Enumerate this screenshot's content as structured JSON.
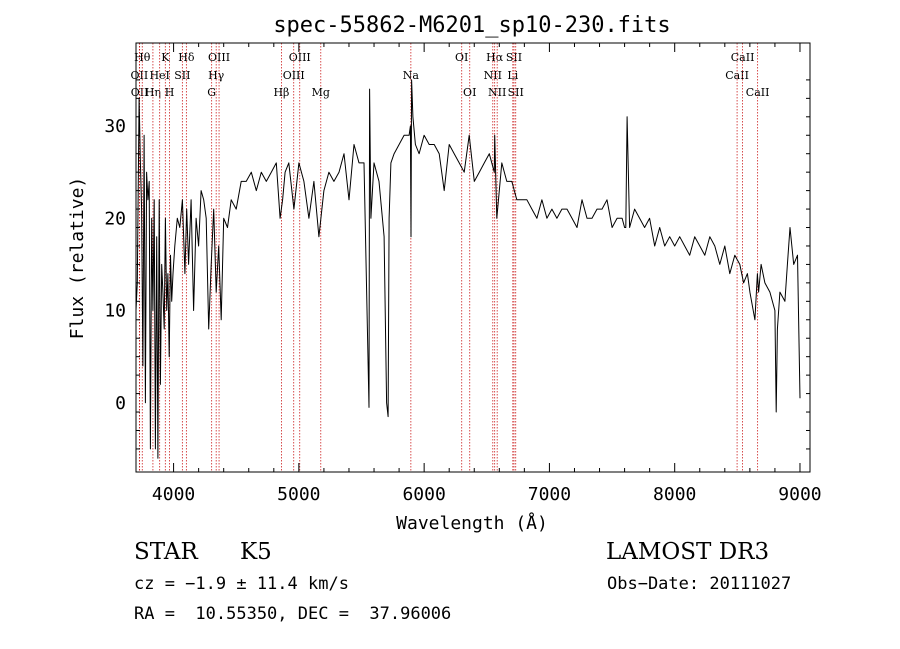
{
  "chart_data": {
    "type": "line",
    "title": "spec-55862-M6201_sp10-230.fits",
    "xlabel": "Wavelength (Å)",
    "ylabel": "Flux (relative)",
    "xlim": [
      3700,
      9080
    ],
    "ylim": [
      -7.5,
      39
    ],
    "xticks": [
      4000,
      5000,
      6000,
      7000,
      8000,
      9000
    ],
    "yticks": [
      0,
      10,
      20,
      30
    ],
    "series": [
      {
        "name": "flux",
        "x": [
          3700,
          3710,
          3725,
          3735,
          3745,
          3755,
          3765,
          3775,
          3785,
          3795,
          3805,
          3815,
          3825,
          3835,
          3845,
          3855,
          3865,
          3875,
          3885,
          3895,
          3905,
          3915,
          3925,
          3935,
          3945,
          3955,
          3965,
          3975,
          3985,
          3995,
          4010,
          4030,
          4050,
          4070,
          4090,
          4105,
          4120,
          4140,
          4160,
          4180,
          4200,
          4220,
          4240,
          4260,
          4280,
          4300,
          4320,
          4340,
          4360,
          4380,
          4400,
          4430,
          4460,
          4500,
          4540,
          4580,
          4620,
          4660,
          4700,
          4740,
          4780,
          4820,
          4850,
          4870,
          4890,
          4920,
          4960,
          5000,
          5040,
          5080,
          5120,
          5160,
          5200,
          5240,
          5280,
          5320,
          5360,
          5400,
          5440,
          5480,
          5520,
          5560,
          5565,
          5575,
          5600,
          5640,
          5680,
          5700,
          5712,
          5720,
          5735,
          5760,
          5800,
          5840,
          5880,
          5890,
          5895,
          5900,
          5910,
          5930,
          5960,
          6000,
          6040,
          6080,
          6120,
          6160,
          6200,
          6240,
          6280,
          6320,
          6360,
          6400,
          6440,
          6480,
          6520,
          6560,
          6563,
          6580,
          6620,
          6660,
          6700,
          6740,
          6780,
          6820,
          6860,
          6900,
          6940,
          6980,
          7020,
          7060,
          7100,
          7140,
          7180,
          7220,
          7260,
          7300,
          7340,
          7380,
          7420,
          7460,
          7500,
          7540,
          7580,
          7600,
          7610,
          7620,
          7640,
          7680,
          7720,
          7760,
          7800,
          7840,
          7880,
          7920,
          7960,
          8000,
          8040,
          8080,
          8120,
          8160,
          8200,
          8240,
          8280,
          8320,
          8360,
          8400,
          8440,
          8480,
          8520,
          8550,
          8580,
          8600,
          8640,
          8660,
          8670,
          8690,
          8720,
          8760,
          8800,
          8810,
          8820,
          8840,
          8880,
          8900,
          8920,
          8950,
          8980,
          9000
        ],
        "y": [
          10,
          13,
          33,
          26,
          21,
          4,
          29,
          0,
          25,
          22,
          24,
          -5,
          20,
          10,
          22,
          -5,
          18,
          -6,
          22,
          2,
          15,
          12,
          8,
          20,
          10,
          14,
          5,
          16,
          11,
          14,
          17,
          20,
          19,
          22,
          14,
          21,
          15,
          22,
          10,
          20,
          17,
          23,
          22,
          20,
          8,
          15,
          21,
          12,
          17,
          9,
          20,
          19,
          22,
          21,
          24,
          24,
          25,
          23,
          25,
          24,
          25,
          26,
          20,
          22,
          25,
          26,
          21,
          26,
          24,
          20,
          24,
          18,
          23,
          25,
          24,
          25,
          27,
          22,
          28,
          26,
          26,
          -0.5,
          34,
          20,
          26,
          24,
          18,
          0,
          -1.5,
          20,
          26,
          27,
          28,
          29,
          29,
          30,
          18,
          35,
          31,
          28,
          27,
          29,
          28,
          28,
          27,
          23,
          28,
          27,
          26,
          25,
          29,
          24,
          25,
          26,
          27,
          25,
          29,
          20,
          26,
          24,
          24,
          22,
          22,
          22,
          21,
          20,
          22,
          20,
          21,
          20,
          21,
          21,
          20,
          19,
          22,
          20,
          20,
          21,
          21,
          22,
          19,
          20,
          20,
          19,
          19,
          31,
          19,
          21,
          20,
          19,
          20,
          17,
          19,
          17,
          18,
          17,
          18,
          17,
          16,
          18,
          17,
          16,
          18,
          17,
          15,
          17,
          14,
          16,
          15,
          13,
          14,
          12,
          9,
          14,
          12,
          15,
          13,
          12,
          10,
          -1,
          8,
          12,
          11,
          15,
          19,
          15,
          16,
          0.5
        ]
      }
    ],
    "lines": [
      {
        "name": "OII",
        "x": 3727,
        "row": 1
      },
      {
        "name": "OII",
        "x": 3729,
        "row": 2
      },
      {
        "name": "Hθ",
        "x": 3750,
        "row": 0
      },
      {
        "name": "Hη",
        "x": 3835,
        "row": 2
      },
      {
        "name": "K",
        "x": 3934,
        "row": 0
      },
      {
        "name": "H",
        "x": 3968,
        "row": 2
      },
      {
        "name": "HeI",
        "x": 3889,
        "row": 1
      },
      {
        "name": "SII",
        "x": 4070,
        "row": 1
      },
      {
        "name": "Hδ",
        "x": 4102,
        "row": 0
      },
      {
        "name": "Hγ",
        "x": 4340,
        "row": 1
      },
      {
        "name": "G",
        "x": 4304,
        "row": 2
      },
      {
        "name": "OIII",
        "x": 4363,
        "row": 0
      },
      {
        "name": "Hβ",
        "x": 4861,
        "row": 2
      },
      {
        "name": "OIII",
        "x": 4959,
        "row": 1
      },
      {
        "name": "OIII",
        "x": 5007,
        "row": 0
      },
      {
        "name": "Mg",
        "x": 5175,
        "row": 2
      },
      {
        "name": "Na",
        "x": 5894,
        "row": 1
      },
      {
        "name": "OI",
        "x": 6300,
        "row": 0
      },
      {
        "name": "OI",
        "x": 6364,
        "row": 2
      },
      {
        "name": "NII",
        "x": 6548,
        "row": 1
      },
      {
        "name": "Hα",
        "x": 6563,
        "row": 0
      },
      {
        "name": "NII",
        "x": 6583,
        "row": 2
      },
      {
        "name": "SII",
        "x": 6717,
        "row": 0
      },
      {
        "name": "SII",
        "x": 6731,
        "row": 2
      },
      {
        "name": "Li",
        "x": 6708,
        "row": 1
      },
      {
        "name": "CaII",
        "x": 8498,
        "row": 1
      },
      {
        "name": "CaII",
        "x": 8542,
        "row": 0
      },
      {
        "name": "CaII",
        "x": 8662,
        "row": 2
      }
    ]
  },
  "info": {
    "class_label": "STAR",
    "subclass": "K5",
    "survey": "LAMOST DR3",
    "redshift": "cz = −1.9 ± 11.4 km/s",
    "obs_date": "Obs−Date: 20111027",
    "coords": "RA =  10.55350, DEC =  37.96006"
  },
  "colors": {
    "line": "#000000",
    "marker": "#cc2222",
    "axis": "#000000"
  }
}
